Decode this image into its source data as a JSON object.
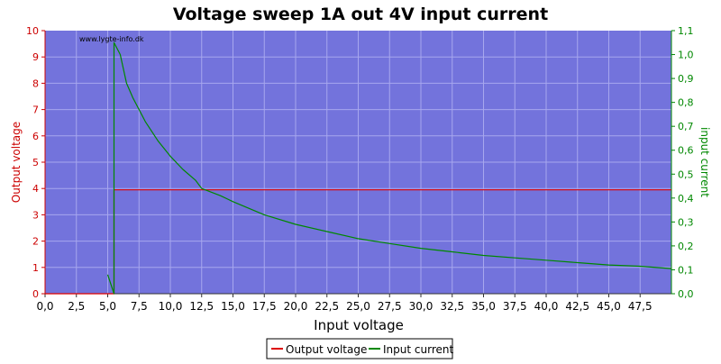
{
  "chart_data": {
    "type": "line",
    "title": "Voltage sweep 1A out 4V input current",
    "xlabel": "Input voltage",
    "ylabel_left": "Output voltage",
    "ylabel_right": "input current",
    "watermark": "www.lygte-info.dk",
    "xlim": [
      0,
      50
    ],
    "ylim_left": [
      0,
      10
    ],
    "ylim_right": [
      0,
      1.1
    ],
    "x_ticks": [
      0,
      2.5,
      5,
      7.5,
      10,
      12.5,
      15,
      17.5,
      20,
      22.5,
      25,
      27.5,
      30,
      32.5,
      35,
      37.5,
      40,
      42.5,
      45,
      47.5
    ],
    "x_tick_labels": [
      "0,0",
      "2,5",
      "5,0",
      "7,5",
      "10,0",
      "12,5",
      "15,0",
      "17,5",
      "20,0",
      "22,5",
      "25,0",
      "27,5",
      "30,0",
      "32,5",
      "35,0",
      "37,5",
      "40,0",
      "42,5",
      "45,0",
      "47,5"
    ],
    "y_left_ticks": [
      0,
      1,
      2,
      3,
      4,
      5,
      6,
      7,
      8,
      9,
      10
    ],
    "y_left_tick_labels": [
      "0",
      "1",
      "2",
      "3",
      "4",
      "5",
      "6",
      "7",
      "8",
      "9",
      "10"
    ],
    "y_right_ticks": [
      0,
      0.1,
      0.2,
      0.3,
      0.4,
      0.5,
      0.6,
      0.7,
      0.8,
      0.9,
      1.0,
      1.1
    ],
    "y_right_tick_labels": [
      "0,0",
      "0,1",
      "0,2",
      "0,3",
      "0,4",
      "0,5",
      "0,6",
      "0,7",
      "0,8",
      "0,9",
      "1,0",
      "1,1"
    ],
    "grid": true,
    "legend_position": "bottom-center",
    "colors": {
      "plot_bg": "#7373dc",
      "grid": "#a7a7ee",
      "output_voltage": "#dd0000",
      "input_current": "#008800",
      "left_axis": "#cc0000",
      "right_axis": "#008800"
    },
    "series": [
      {
        "name": "Output voltage",
        "axis": "left",
        "x": [
          0,
          5.5,
          5.5,
          6,
          10,
          15,
          20,
          25,
          30,
          35,
          40,
          45,
          50
        ],
        "y": [
          0,
          0,
          3.95,
          3.95,
          3.95,
          3.95,
          3.95,
          3.95,
          3.95,
          3.95,
          3.95,
          3.95,
          3.95
        ]
      },
      {
        "name": "Input current",
        "axis": "right",
        "x": [
          5.0,
          5.5,
          5.5,
          6,
          6.5,
          7,
          7.5,
          8,
          9,
          10,
          11,
          12,
          12.5,
          14,
          15,
          17.5,
          20,
          22.5,
          25,
          27.5,
          30,
          32.5,
          35,
          37.5,
          40,
          42.5,
          45,
          47.5,
          50
        ],
        "y": [
          0.08,
          0.0,
          1.05,
          1.0,
          0.88,
          0.82,
          0.77,
          0.72,
          0.64,
          0.575,
          0.52,
          0.475,
          0.44,
          0.41,
          0.385,
          0.33,
          0.29,
          0.26,
          0.23,
          0.21,
          0.19,
          0.175,
          0.16,
          0.15,
          0.14,
          0.13,
          0.12,
          0.115,
          0.105
        ]
      }
    ]
  }
}
